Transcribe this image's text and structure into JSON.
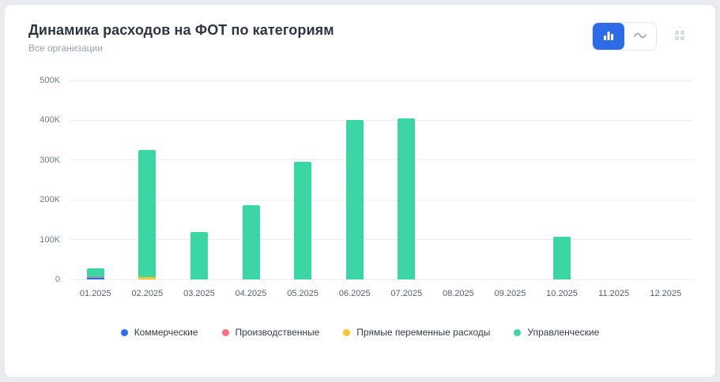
{
  "header": {
    "title": "Динамика расходов на ФОТ по категориям",
    "subtitle": "Все организации"
  },
  "toolbar": {
    "bar_view_icon": "bar-chart-icon",
    "line_view_icon": "line-chart-icon",
    "grid_icon": "grid-handle-icon",
    "active_view": "bar",
    "active_color": "#2e6be6"
  },
  "chart_data": {
    "type": "bar",
    "stacked": true,
    "title": "Динамика расходов на ФОТ по категориям",
    "xlabel": "",
    "ylabel": "",
    "categories": [
      "01.2025",
      "02.2025",
      "03.2025",
      "04.2025",
      "05.2025",
      "06.2025",
      "07.2025",
      "08.2025",
      "09.2025",
      "10.2025",
      "11.2025",
      "12.2025"
    ],
    "series": [
      {
        "name": "Коммерческие",
        "color": "#2e6bf0",
        "values": [
          4000,
          0,
          0,
          0,
          0,
          0,
          0,
          0,
          0,
          0,
          0,
          0
        ]
      },
      {
        "name": "Производственные",
        "color": "#f7707f",
        "values": [
          2000,
          0,
          0,
          0,
          0,
          0,
          0,
          0,
          0,
          0,
          0,
          0
        ]
      },
      {
        "name": "Прямые переменные расходы",
        "color": "#fcc62b",
        "values": [
          0,
          6000,
          0,
          0,
          0,
          0,
          0,
          0,
          0,
          0,
          0,
          0
        ]
      },
      {
        "name": "Управленческие",
        "color": "#3cd6a5",
        "values": [
          22000,
          320000,
          120000,
          186000,
          296000,
          400000,
          405000,
          0,
          0,
          107000,
          0,
          0
        ]
      }
    ],
    "ylim": [
      0,
      500000
    ],
    "ytick_step": 100000,
    "ytick_labels": [
      "0",
      "100K",
      "200K",
      "300K",
      "400K",
      "500K"
    ],
    "grid": true,
    "legend_position": "bottom"
  }
}
